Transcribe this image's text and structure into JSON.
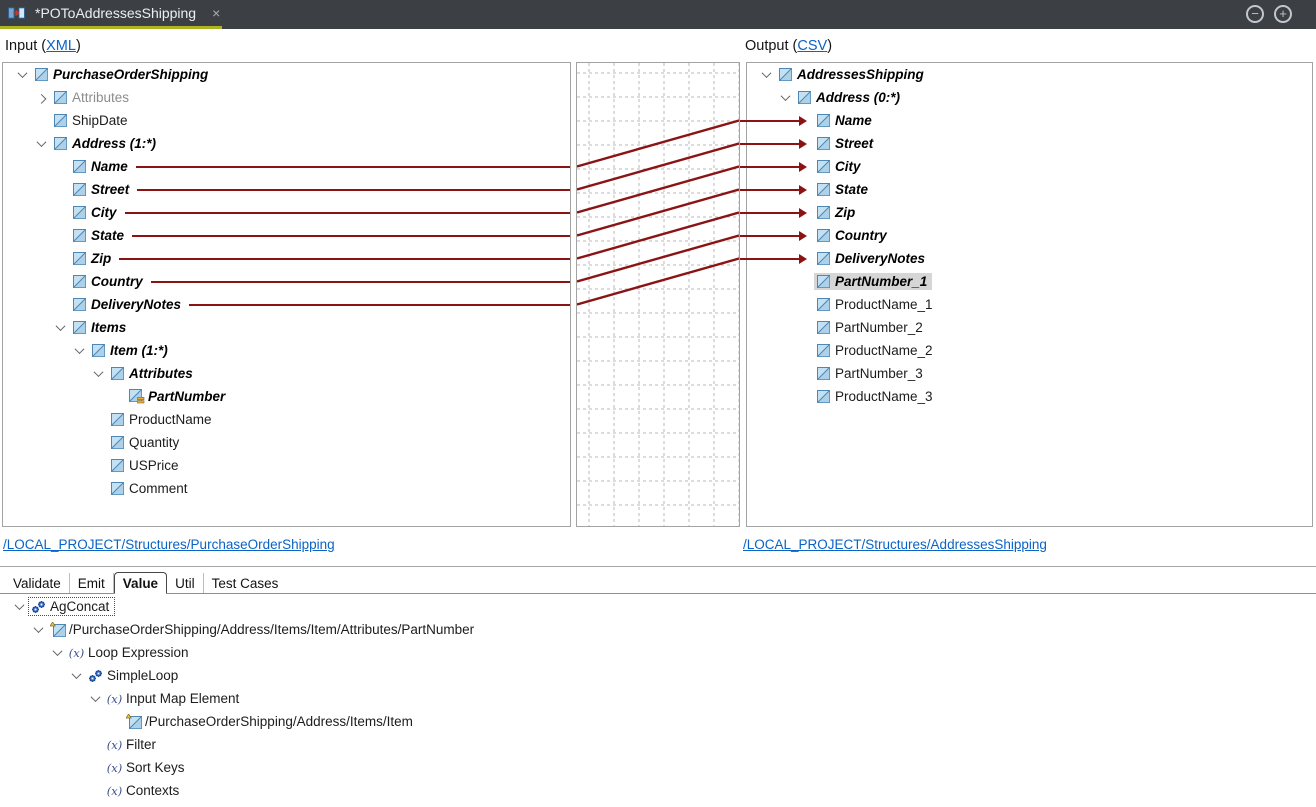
{
  "window": {
    "tab_title": "*POToAddressesShipping",
    "tab_icon": "map-transform-icon",
    "close_glyph": "×",
    "minimize_glyph": "−",
    "maximize_glyph": "+"
  },
  "colors": {
    "topbar_bg": "#3c4045",
    "active_tab_underline": "#adb421",
    "mapping_line": "#8a1414",
    "link": "#0a63c5",
    "selection_bg": "#d6d6d6"
  },
  "input_panel": {
    "header_prefix": "Input (",
    "header_link": "XML",
    "header_suffix": ")",
    "footer_link": "/LOCAL_PROJECT/Structures/PurchaseOrderShipping",
    "tree": [
      {
        "label": "PurchaseOrderShipping",
        "depth": 0,
        "chevron": "down",
        "icon": "element",
        "style": "bold"
      },
      {
        "label": "Attributes",
        "depth": 1,
        "chevron": "right",
        "icon": "element",
        "style": "dim"
      },
      {
        "label": "ShipDate",
        "depth": 1,
        "chevron": null,
        "icon": "element",
        "style": "normal"
      },
      {
        "label": "Address (1:*)",
        "depth": 1,
        "chevron": "down",
        "icon": "element",
        "style": "bold"
      },
      {
        "label": "Name",
        "depth": 2,
        "chevron": null,
        "icon": "element",
        "style": "bold",
        "line": true
      },
      {
        "label": "Street",
        "depth": 2,
        "chevron": null,
        "icon": "element",
        "style": "bold",
        "line": true
      },
      {
        "label": "City",
        "depth": 2,
        "chevron": null,
        "icon": "element",
        "style": "bold",
        "line": true
      },
      {
        "label": "State",
        "depth": 2,
        "chevron": null,
        "icon": "element",
        "style": "bold",
        "line": true
      },
      {
        "label": "Zip",
        "depth": 2,
        "chevron": null,
        "icon": "element",
        "style": "bold",
        "line": true
      },
      {
        "label": "Country",
        "depth": 2,
        "chevron": null,
        "icon": "element",
        "style": "bold",
        "line": true
      },
      {
        "label": "DeliveryNotes",
        "depth": 2,
        "chevron": null,
        "icon": "element",
        "style": "bold",
        "line": true
      },
      {
        "label": "Items",
        "depth": 2,
        "chevron": "down",
        "icon": "element",
        "style": "bold"
      },
      {
        "label": "Item (1:*)",
        "depth": 3,
        "chevron": "down",
        "icon": "element",
        "style": "bold"
      },
      {
        "label": "Attributes",
        "depth": 4,
        "chevron": "down",
        "icon": "element",
        "style": "bold"
      },
      {
        "label": "PartNumber",
        "depth": 5,
        "chevron": null,
        "icon": "element-attr",
        "style": "bold"
      },
      {
        "label": "ProductName",
        "depth": 4,
        "chevron": null,
        "icon": "element",
        "style": "normal"
      },
      {
        "label": "Quantity",
        "depth": 4,
        "chevron": null,
        "icon": "element",
        "style": "normal"
      },
      {
        "label": "USPrice",
        "depth": 4,
        "chevron": null,
        "icon": "element",
        "style": "normal"
      },
      {
        "label": "Comment",
        "depth": 4,
        "chevron": null,
        "icon": "element",
        "style": "normal"
      }
    ]
  },
  "output_panel": {
    "header_prefix": "Output (",
    "header_link": "CSV",
    "header_suffix": ")",
    "footer_link": "/LOCAL_PROJECT/Structures/AddressesShipping",
    "tree": [
      {
        "label": "AddressesShipping",
        "depth": 0,
        "chevron": "down",
        "icon": "element",
        "style": "bold"
      },
      {
        "label": "Address (0:*)",
        "depth": 1,
        "chevron": "down",
        "icon": "element",
        "style": "bold"
      },
      {
        "label": "Name",
        "depth": 2,
        "chevron": null,
        "icon": "element",
        "style": "bold",
        "arrow": true
      },
      {
        "label": "Street",
        "depth": 2,
        "chevron": null,
        "icon": "element",
        "style": "bold",
        "arrow": true
      },
      {
        "label": "City",
        "depth": 2,
        "chevron": null,
        "icon": "element",
        "style": "bold",
        "arrow": true
      },
      {
        "label": "State",
        "depth": 2,
        "chevron": null,
        "icon": "element",
        "style": "bold",
        "arrow": true
      },
      {
        "label": "Zip",
        "depth": 2,
        "chevron": null,
        "icon": "element",
        "style": "bold",
        "arrow": true
      },
      {
        "label": "Country",
        "depth": 2,
        "chevron": null,
        "icon": "element",
        "style": "bold",
        "arrow": true
      },
      {
        "label": "DeliveryNotes",
        "depth": 2,
        "chevron": null,
        "icon": "element",
        "style": "bold",
        "arrow": true
      },
      {
        "label": "PartNumber_1",
        "depth": 2,
        "chevron": null,
        "icon": "element",
        "style": "bold",
        "selected": true
      },
      {
        "label": "ProductName_1",
        "depth": 2,
        "chevron": null,
        "icon": "element",
        "style": "normal"
      },
      {
        "label": "PartNumber_2",
        "depth": 2,
        "chevron": null,
        "icon": "element",
        "style": "normal"
      },
      {
        "label": "ProductName_2",
        "depth": 2,
        "chevron": null,
        "icon": "element",
        "style": "normal"
      },
      {
        "label": "PartNumber_3",
        "depth": 2,
        "chevron": null,
        "icon": "element",
        "style": "normal"
      },
      {
        "label": "ProductName_3",
        "depth": 2,
        "chevron": null,
        "icon": "element",
        "style": "normal"
      }
    ]
  },
  "mappings": [
    {
      "from": "Name",
      "to": "Name"
    },
    {
      "from": "Street",
      "to": "Street"
    },
    {
      "from": "City",
      "to": "City"
    },
    {
      "from": "State",
      "to": "State"
    },
    {
      "from": "Zip",
      "to": "Zip"
    },
    {
      "from": "Country",
      "to": "Country"
    },
    {
      "from": "DeliveryNotes",
      "to": "DeliveryNotes"
    }
  ],
  "bottom_panel": {
    "tabs": [
      {
        "label": "Validate",
        "active": false
      },
      {
        "label": "Emit",
        "active": false
      },
      {
        "label": "Value",
        "active": true
      },
      {
        "label": "Util",
        "active": false
      },
      {
        "label": "Test Cases",
        "active": false
      }
    ],
    "tree": [
      {
        "label": "AgConcat",
        "depth": 0,
        "chevron": "down",
        "icon": "gears",
        "focus": true
      },
      {
        "label": "/PurchaseOrderShipping/Address/Items/Item/Attributes/PartNumber",
        "depth": 1,
        "chevron": "down",
        "icon": "mapelem"
      },
      {
        "label": "Loop Expression",
        "depth": 2,
        "chevron": "down",
        "icon": "fx"
      },
      {
        "label": "SimpleLoop",
        "depth": 3,
        "chevron": "down",
        "icon": "gears"
      },
      {
        "label": "Input Map Element",
        "depth": 4,
        "chevron": "down",
        "icon": "fx"
      },
      {
        "label": "/PurchaseOrderShipping/Address/Items/Item",
        "depth": 5,
        "chevron": null,
        "icon": "mapelem"
      },
      {
        "label": "Filter",
        "depth": 4,
        "chevron": null,
        "icon": "fx"
      },
      {
        "label": "Sort Keys",
        "depth": 4,
        "chevron": null,
        "icon": "fx"
      },
      {
        "label": "Contexts",
        "depth": 4,
        "chevron": null,
        "icon": "fx"
      }
    ]
  }
}
